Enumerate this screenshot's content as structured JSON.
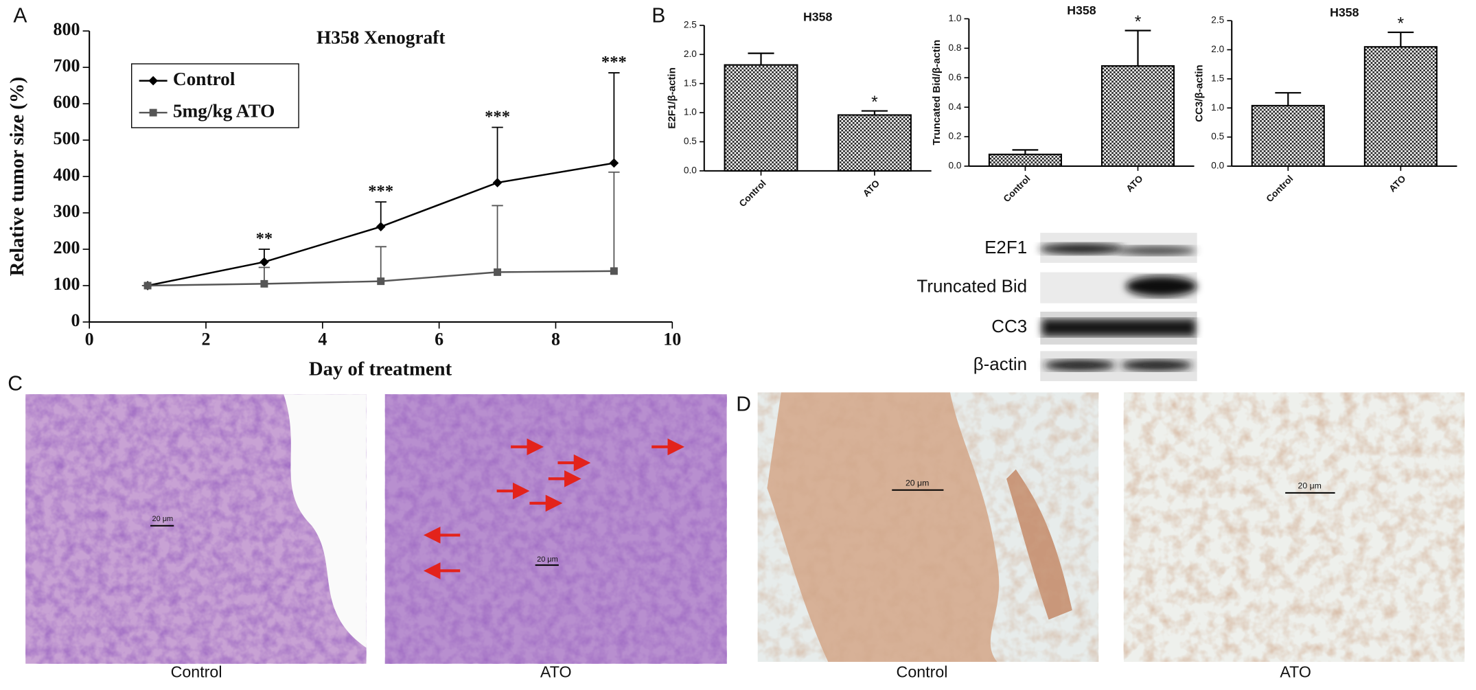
{
  "chart_data": [
    {
      "type": "line",
      "title": "H358 Xenograft",
      "x_label": "Day of treatment",
      "y_label": "Relative tumor size (%)",
      "xlim": [
        0,
        10
      ],
      "xticks": [
        0,
        2,
        4,
        6,
        8,
        10
      ],
      "ylim": [
        0,
        800
      ],
      "yticks": [
        0,
        100,
        200,
        300,
        400,
        500,
        600,
        700,
        800
      ],
      "legend": "upper left",
      "series": [
        {
          "name": "Control",
          "color": "#000000",
          "marker": "diamond",
          "x": [
            1,
            3,
            5,
            7,
            9
          ],
          "values": [
            100,
            165,
            262,
            383,
            437
          ],
          "errors": [
            0,
            35,
            68,
            152,
            248
          ]
        },
        {
          "name": "5mg/kg ATO",
          "color": "#555555",
          "marker": "square",
          "x": [
            1,
            3,
            5,
            7,
            9
          ],
          "values": [
            100,
            105,
            112,
            137,
            140
          ],
          "errors": [
            0,
            45,
            95,
            183,
            272
          ]
        }
      ],
      "significance": [
        null,
        "**",
        "***",
        "***",
        "***"
      ]
    },
    {
      "type": "bar",
      "title": "H358",
      "y_label": "E2F1/β-actin",
      "categories": [
        "Control",
        "ATO"
      ],
      "values": [
        1.82,
        0.96
      ],
      "errors": [
        0.2,
        0.07
      ],
      "significance": [
        null,
        "*"
      ],
      "ylim": [
        0,
        2.5
      ],
      "yticks": [
        {
          "value": 0,
          "label": "0.0"
        },
        0.5,
        {
          "value": 1,
          "label": "1.0"
        },
        1.5,
        {
          "value": 2,
          "label": "2.0"
        },
        2.5
      ]
    },
    {
      "type": "bar",
      "title": "H358",
      "y_label": "Truncated Bid/β-actin",
      "categories": [
        "Control",
        "ATO"
      ],
      "values": [
        0.08,
        0.68
      ],
      "errors": [
        0.03,
        0.24
      ],
      "significance": [
        null,
        "*"
      ],
      "ylim": [
        0,
        1
      ],
      "yticks": [
        {
          "value": 0,
          "label": "0.0"
        },
        0.2,
        0.4,
        0.6,
        0.8,
        {
          "value": 1,
          "label": "1.0"
        }
      ]
    },
    {
      "type": "bar",
      "title": "H358",
      "y_label": "CC3/β-actin",
      "categories": [
        "Control",
        "ATO"
      ],
      "values": [
        1.04,
        2.05
      ],
      "errors": [
        0.22,
        0.25
      ],
      "significance": [
        null,
        "*"
      ],
      "ylim": [
        0,
        2.5
      ],
      "yticks": [
        {
          "value": 0,
          "label": "0.0"
        },
        0.5,
        {
          "value": 1,
          "label": "1.0"
        },
        1.5,
        {
          "value": 2,
          "label": "2.0"
        },
        2.5
      ]
    }
  ],
  "panels": {
    "labels": [
      "A",
      "B",
      "C",
      "D"
    ],
    "blot_bands": [
      "E2F1",
      "Truncated Bid",
      "CC3",
      "β-actin"
    ],
    "histology_captions": [
      "Control",
      "ATO",
      "Control",
      "ATO"
    ],
    "scale_bar": "20 μm"
  }
}
